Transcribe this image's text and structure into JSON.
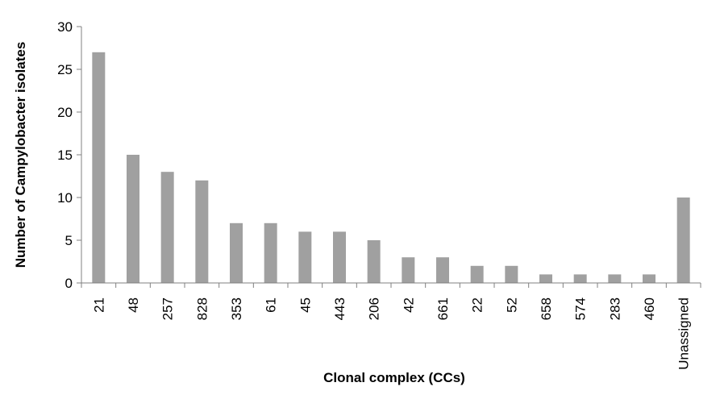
{
  "chart_data": {
    "type": "bar",
    "xlabel": "Clonal complex (CCs)",
    "ylabel": "Number of  Campylobacter isolates",
    "ylim": [
      0,
      30
    ],
    "yticks": [
      0,
      5,
      10,
      15,
      20,
      25,
      30
    ],
    "grid": false,
    "legend": "none",
    "bar_color": "#a0a0a0",
    "axis_color": "#808080",
    "categories": [
      "21",
      "48",
      "257",
      "828",
      "353",
      "61",
      "45",
      "443",
      "206",
      "42",
      "661",
      "22",
      "52",
      "658",
      "574",
      "283",
      "460",
      "Unassigned"
    ],
    "values": [
      27,
      15,
      13,
      12,
      7,
      7,
      6,
      6,
      5,
      3,
      3,
      2,
      2,
      1,
      1,
      1,
      1,
      10
    ]
  }
}
